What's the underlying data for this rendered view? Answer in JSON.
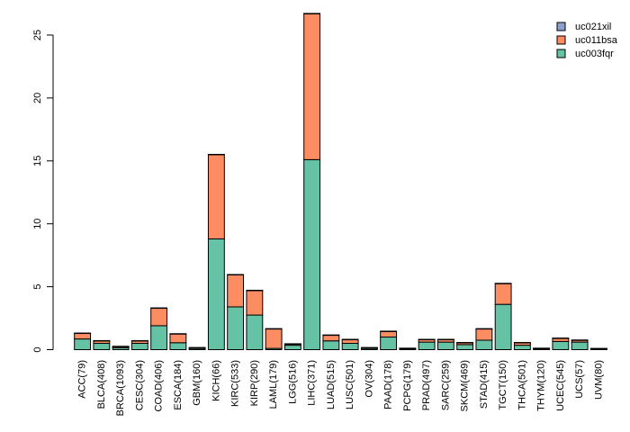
{
  "chart_data": {
    "type": "bar",
    "stacked": true,
    "title": "",
    "xlabel": "",
    "ylabel": "",
    "ylim": [
      0,
      27
    ],
    "yticks": [
      0,
      5,
      10,
      15,
      20,
      25
    ],
    "categories": [
      "ACC(79)",
      "BLCA(408)",
      "BRCA(1093)",
      "CESC(304)",
      "COAD(406)",
      "ESCA(184)",
      "GBM(160)",
      "KICH(66)",
      "KIRC(533)",
      "KIRP(290)",
      "LAML(179)",
      "LGG(516)",
      "LIHC(371)",
      "LUAD(515)",
      "LUSC(501)",
      "OV(304)",
      "PAAD(178)",
      "PCPG(179)",
      "PRAD(497)",
      "SARC(259)",
      "SKCM(469)",
      "STAD(415)",
      "TGCT(150)",
      "THCA(501)",
      "THYM(120)",
      "UCEC(545)",
      "UCS(57)",
      "UVM(80)"
    ],
    "series": [
      {
        "name": "uc003fqr",
        "color": "#66C2A5",
        "values": [
          0.85,
          0.5,
          0.15,
          0.5,
          1.9,
          0.55,
          0.1,
          8.8,
          3.4,
          2.75,
          0.1,
          0.35,
          15.1,
          0.7,
          0.5,
          0.1,
          1.0,
          0.05,
          0.6,
          0.6,
          0.4,
          0.75,
          3.6,
          0.35,
          0.05,
          0.65,
          0.6,
          0.05
        ]
      },
      {
        "name": "uc011bsa",
        "color": "#FC8D62",
        "values": [
          0.45,
          0.2,
          0.1,
          0.2,
          1.4,
          0.7,
          0.05,
          6.7,
          2.55,
          1.95,
          1.55,
          0.1,
          11.6,
          0.45,
          0.3,
          0.05,
          0.45,
          0.05,
          0.2,
          0.2,
          0.15,
          0.9,
          1.65,
          0.2,
          0.05,
          0.25,
          0.15,
          0.03
        ]
      },
      {
        "name": "uc021xil",
        "color": "#8DA0CB",
        "values": [
          0.02,
          0.02,
          0.02,
          0.02,
          0.02,
          0.02,
          0.02,
          0.02,
          0.02,
          0.02,
          0.02,
          0.02,
          0.02,
          0.02,
          0.02,
          0.02,
          0.02,
          0.02,
          0.02,
          0.02,
          0.02,
          0.02,
          0.02,
          0.02,
          0.02,
          0.02,
          0.02,
          0.02
        ]
      }
    ],
    "legend": {
      "position": "top-right",
      "entries": [
        "uc021xil",
        "uc011bsa",
        "uc003fqr"
      ]
    }
  }
}
